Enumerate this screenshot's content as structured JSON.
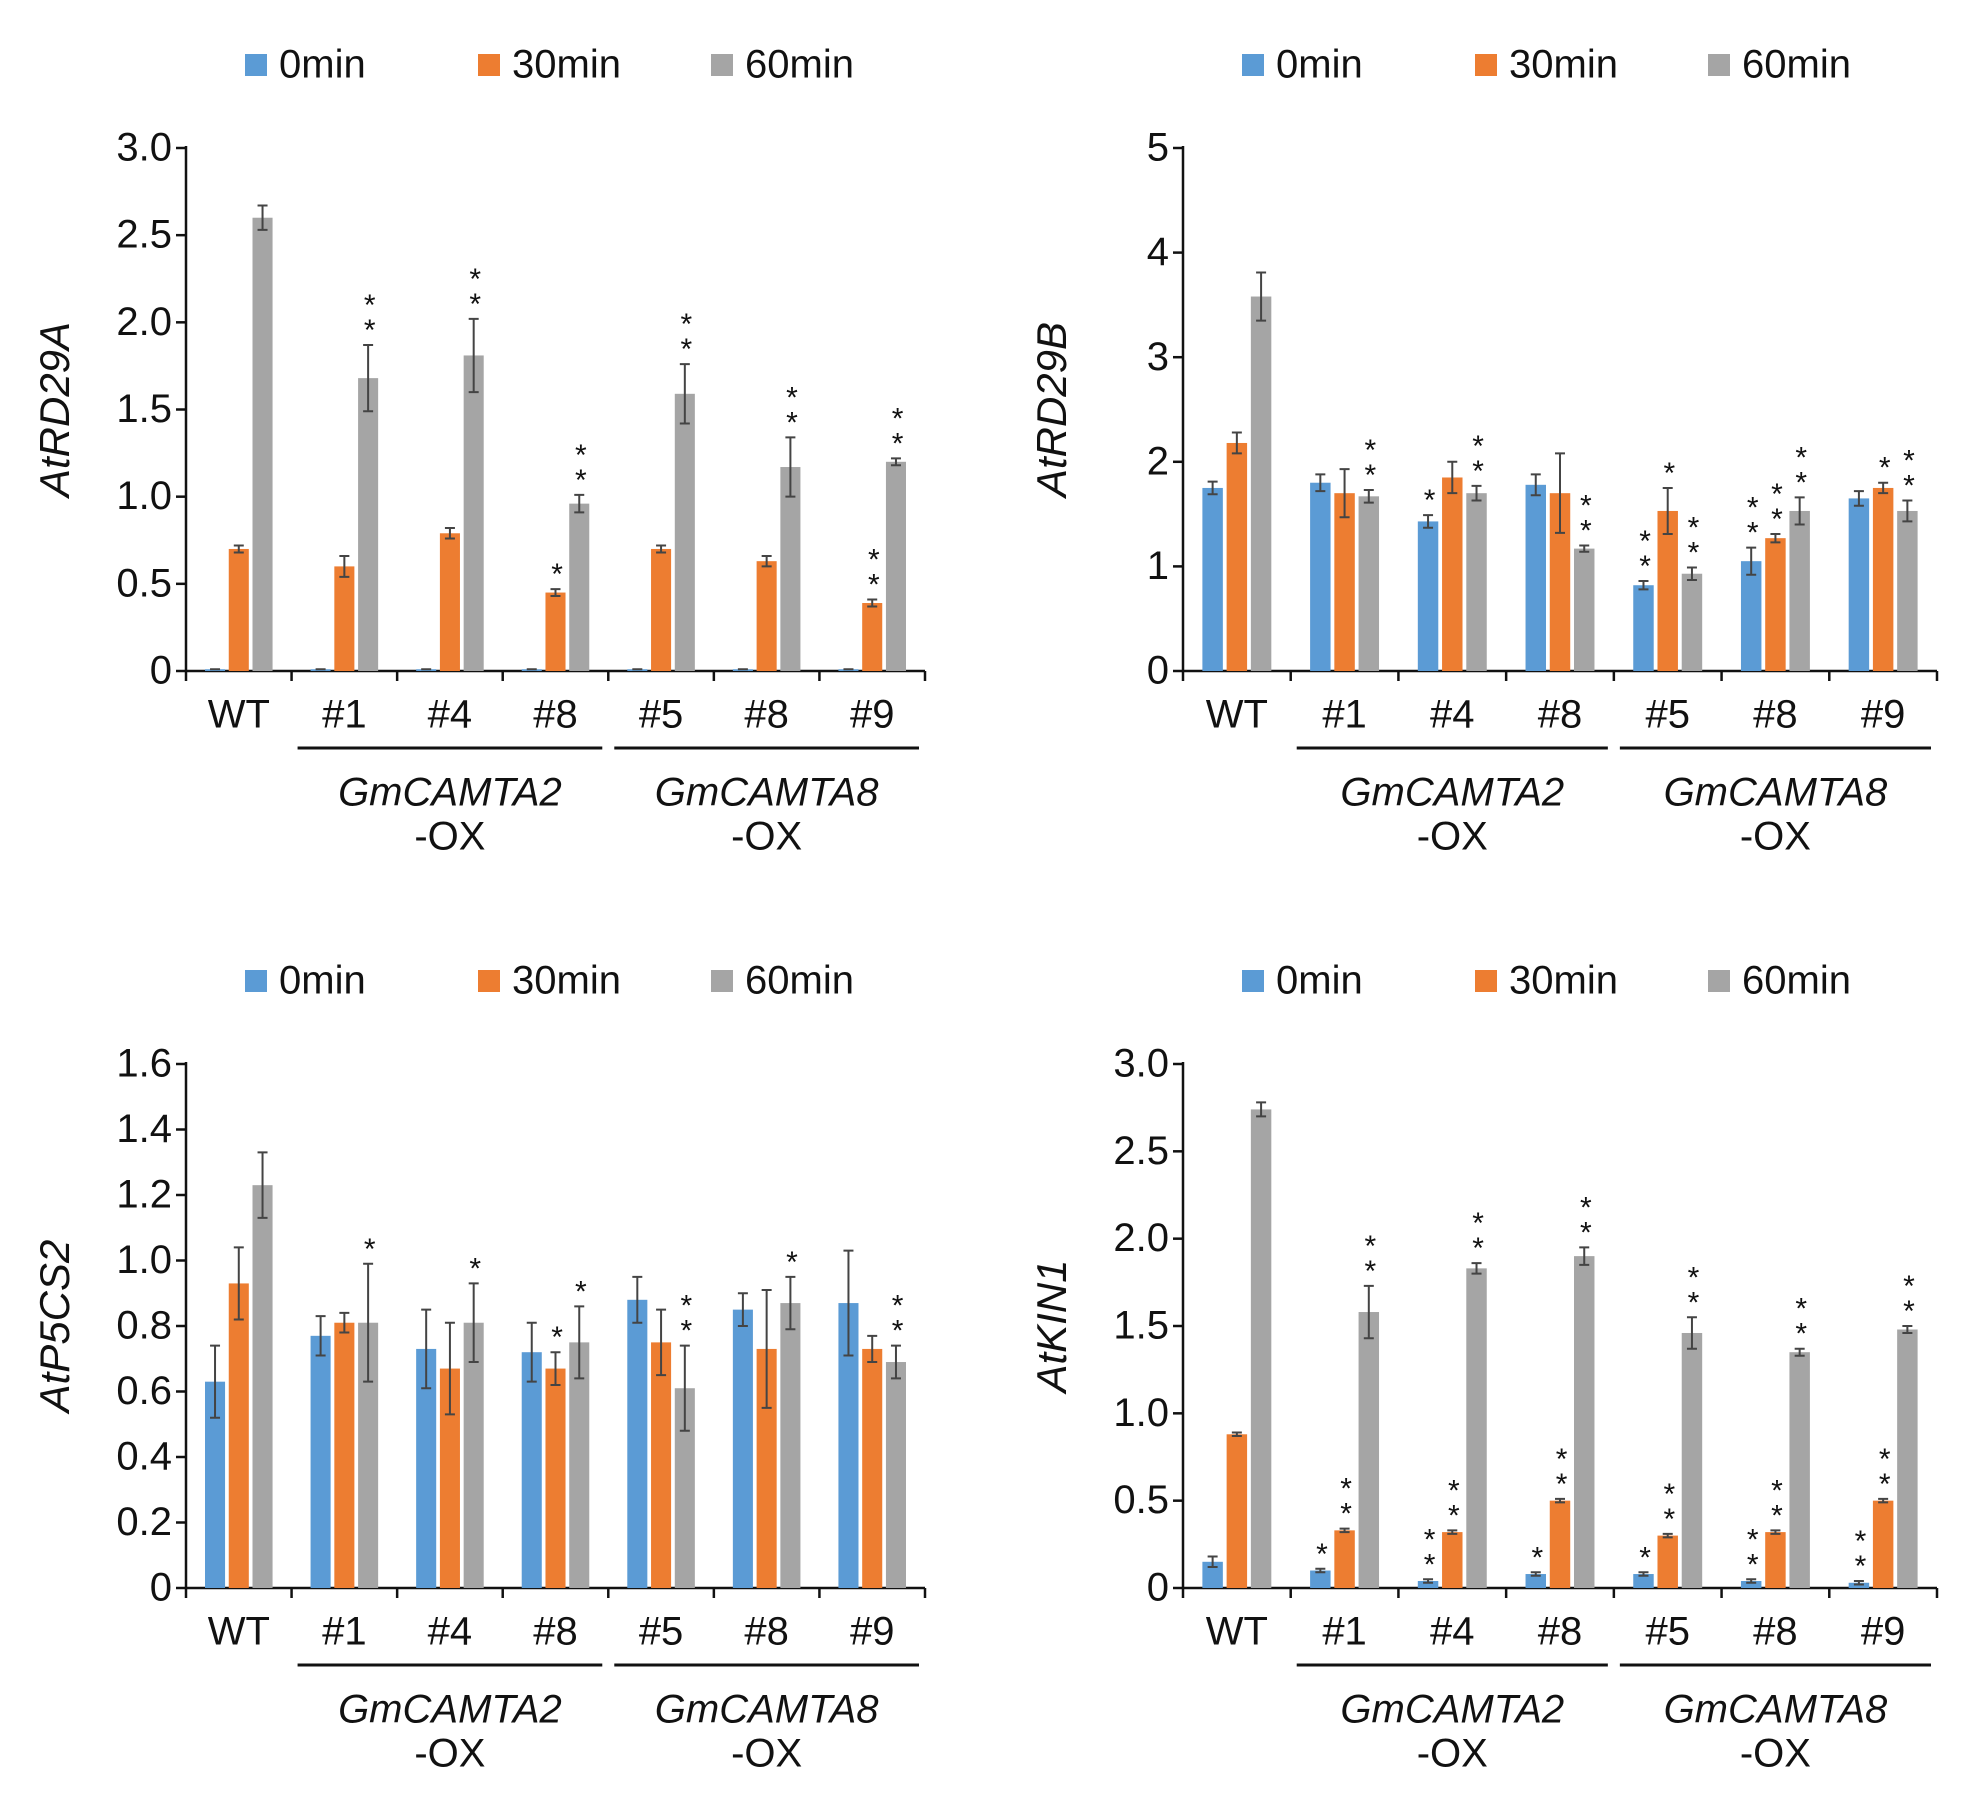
{
  "chart_data": [
    {
      "type": "bar",
      "ylabel": "AtRD29A",
      "categories": [
        "WT",
        "#1",
        "#4",
        "#8",
        "#5",
        "#8",
        "#9"
      ],
      "groups": [
        {
          "lines": [
            "GmCAMTA2",
            "-OX"
          ]
        },
        {
          "lines": [
            "GmCAMTA8",
            "-OX"
          ]
        }
      ],
      "ylim": [
        0,
        3
      ],
      "yticks": [
        0,
        0.5,
        {
          "value": 1,
          "label": "1.0"
        },
        1.5,
        {
          "value": 2,
          "label": "2.0"
        },
        2.5,
        {
          "value": 3,
          "label": "3.0"
        }
      ],
      "series": [
        {
          "name": "0min",
          "color": "#5b9bd5",
          "values": [
            0.01,
            0.01,
            0.01,
            0.01,
            0.01,
            0.01,
            0.01
          ],
          "errors": [
            0,
            0,
            0,
            0,
            0,
            0,
            0
          ],
          "annotations": [
            null,
            null,
            null,
            null,
            null,
            null,
            null
          ]
        },
        {
          "name": "30min",
          "color": "#ed7d31",
          "values": [
            0.7,
            0.6,
            0.79,
            0.45,
            0.7,
            0.63,
            0.39
          ],
          "errors": [
            0.02,
            0.06,
            0.03,
            0.02,
            0.02,
            0.03,
            0.02
          ],
          "annotations": [
            null,
            null,
            null,
            "*",
            null,
            null,
            "**"
          ]
        },
        {
          "name": "60min",
          "color": "#a5a5a5",
          "values": [
            2.6,
            1.68,
            1.81,
            0.96,
            1.59,
            1.17,
            1.2
          ],
          "errors": [
            0.07,
            0.19,
            0.21,
            0.05,
            0.17,
            0.17,
            0.02
          ],
          "annotations": [
            null,
            "**",
            "**",
            "**",
            "**",
            "**",
            "**"
          ]
        }
      ]
    },
    {
      "type": "bar",
      "ylabel": "AtRD29B",
      "categories": [
        "WT",
        "#1",
        "#4",
        "#8",
        "#5",
        "#8",
        "#9"
      ],
      "groups": [
        {
          "lines": [
            "GmCAMTA2",
            "-OX"
          ]
        },
        {
          "lines": [
            "GmCAMTA8",
            "-OX"
          ]
        }
      ],
      "ylim": [
        0,
        5
      ],
      "yticks": [
        0,
        1,
        2,
        3,
        4,
        5
      ],
      "series": [
        {
          "name": "0min",
          "color": "#5b9bd5",
          "values": [
            1.75,
            1.8,
            1.43,
            1.78,
            0.82,
            1.05,
            1.65
          ],
          "errors": [
            0.06,
            0.08,
            0.06,
            0.1,
            0.04,
            0.13,
            0.07
          ],
          "annotations": [
            null,
            null,
            "*",
            null,
            "**",
            "**",
            null
          ]
        },
        {
          "name": "30min",
          "color": "#ed7d31",
          "values": [
            2.18,
            1.7,
            1.85,
            1.7,
            1.53,
            1.27,
            1.75
          ],
          "errors": [
            0.1,
            0.23,
            0.15,
            0.38,
            0.22,
            0.04,
            0.05
          ],
          "annotations": [
            null,
            null,
            null,
            null,
            "*",
            "**",
            "*"
          ]
        },
        {
          "name": "60min",
          "color": "#a5a5a5",
          "values": [
            3.58,
            1.67,
            1.7,
            1.17,
            0.93,
            1.53,
            1.53
          ],
          "errors": [
            0.23,
            0.06,
            0.07,
            0.03,
            0.06,
            0.13,
            0.1
          ],
          "annotations": [
            null,
            "**",
            "**",
            "**",
            "**",
            "**",
            "**"
          ]
        }
      ]
    },
    {
      "type": "bar",
      "ylabel": "AtP5CS2",
      "categories": [
        "WT",
        "#1",
        "#4",
        "#8",
        "#5",
        "#8",
        "#9"
      ],
      "groups": [
        {
          "lines": [
            "GmCAMTA2",
            "-OX"
          ]
        },
        {
          "lines": [
            "GmCAMTA8",
            "-OX"
          ]
        }
      ],
      "ylim": [
        0,
        1.6
      ],
      "yticks": [
        0,
        0.2,
        0.4,
        0.6,
        0.8,
        {
          "value": 1,
          "label": "1.0"
        },
        1.2,
        1.4,
        1.6
      ],
      "series": [
        {
          "name": "0min",
          "color": "#5b9bd5",
          "values": [
            0.63,
            0.77,
            0.73,
            0.72,
            0.88,
            0.85,
            0.87
          ],
          "errors": [
            0.11,
            0.06,
            0.12,
            0.09,
            0.07,
            0.05,
            0.16
          ],
          "annotations": [
            null,
            null,
            null,
            null,
            null,
            null,
            null
          ]
        },
        {
          "name": "30min",
          "color": "#ed7d31",
          "values": [
            0.93,
            0.81,
            0.67,
            0.67,
            0.75,
            0.73,
            0.73
          ],
          "errors": [
            0.11,
            0.03,
            0.14,
            0.05,
            0.1,
            0.18,
            0.04
          ],
          "annotations": [
            null,
            null,
            null,
            "*",
            null,
            null,
            null
          ]
        },
        {
          "name": "60min",
          "color": "#a5a5a5",
          "values": [
            1.23,
            0.81,
            0.81,
            0.75,
            0.61,
            0.87,
            0.69
          ],
          "errors": [
            0.1,
            0.18,
            0.12,
            0.11,
            0.13,
            0.08,
            0.05
          ],
          "annotations": [
            null,
            "*",
            "*",
            "*",
            "**",
            "*",
            "**"
          ]
        }
      ]
    },
    {
      "type": "bar",
      "ylabel": "AtKIN1",
      "categories": [
        "WT",
        "#1",
        "#4",
        "#8",
        "#5",
        "#8",
        "#9"
      ],
      "groups": [
        {
          "lines": [
            "GmCAMTA2",
            "-OX"
          ]
        },
        {
          "lines": [
            "GmCAMTA8",
            "-OX"
          ]
        }
      ],
      "ylim": [
        0,
        3
      ],
      "yticks": [
        0,
        0.5,
        {
          "value": 1,
          "label": "1.0"
        },
        1.5,
        {
          "value": 2,
          "label": "2.0"
        },
        2.5,
        {
          "value": 3,
          "label": "3.0"
        }
      ],
      "series": [
        {
          "name": "0min",
          "color": "#5b9bd5",
          "values": [
            0.15,
            0.1,
            0.04,
            0.08,
            0.08,
            0.04,
            0.03
          ],
          "errors": [
            0.03,
            0.01,
            0.01,
            0.01,
            0.01,
            0.01,
            0.01
          ],
          "annotations": [
            null,
            "*",
            "**",
            "*",
            "*",
            "**",
            "**"
          ]
        },
        {
          "name": "30min",
          "color": "#ed7d31",
          "values": [
            0.88,
            0.33,
            0.32,
            0.5,
            0.3,
            0.32,
            0.5
          ],
          "errors": [
            0.01,
            0.01,
            0.01,
            0.01,
            0.01,
            0.01,
            0.01
          ],
          "annotations": [
            null,
            "**",
            "**",
            "**",
            "**",
            "**",
            "**"
          ]
        },
        {
          "name": "60min",
          "color": "#a5a5a5",
          "values": [
            2.74,
            1.58,
            1.83,
            1.9,
            1.46,
            1.35,
            1.48
          ],
          "errors": [
            0.04,
            0.15,
            0.03,
            0.05,
            0.09,
            0.02,
            0.02
          ],
          "annotations": [
            null,
            "**",
            "**",
            "**",
            "**",
            "**",
            "**"
          ]
        }
      ]
    }
  ]
}
